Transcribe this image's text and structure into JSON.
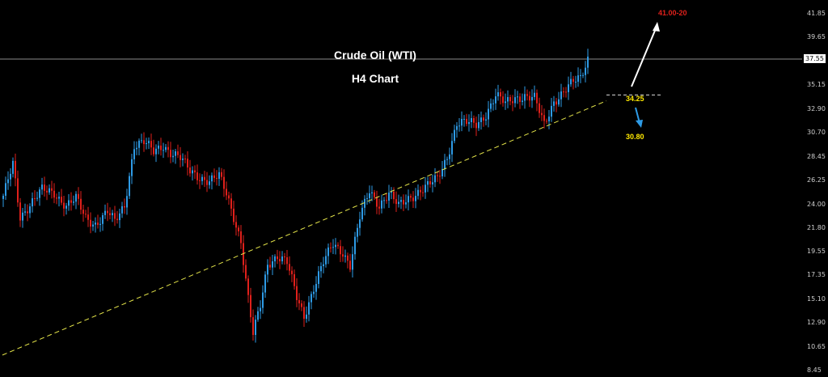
{
  "chart_data": {
    "type": "candlestick",
    "title": "Crude Oil (WTI)",
    "subtitle": "H4 Chart",
    "y_ticks": [
      "41.85",
      "39.65",
      "37.55",
      "35.15",
      "32.90",
      "30.70",
      "28.45",
      "26.25",
      "24.00",
      "21.80",
      "19.55",
      "17.35",
      "15.10",
      "12.90",
      "10.65",
      "8.45"
    ],
    "ylim": [
      8.45,
      41.85
    ],
    "current_price": "37.55",
    "colors": {
      "up": "#2e9be6",
      "down": "#e0201b",
      "trendline": "#e6e64a",
      "background": "#000000"
    },
    "price_path": [
      [
        0,
        24.6
      ],
      [
        4,
        27.8
      ],
      [
        7,
        22.9
      ],
      [
        11,
        24.0
      ],
      [
        16,
        25.3
      ],
      [
        21,
        25.1
      ],
      [
        26,
        23.9
      ],
      [
        30,
        24.5
      ],
      [
        34,
        22.7
      ],
      [
        38,
        22.2
      ],
      [
        43,
        23.3
      ],
      [
        46,
        22.3
      ],
      [
        50,
        23.9
      ],
      [
        54,
        29.6
      ],
      [
        58,
        29.8
      ],
      [
        62,
        28.9
      ],
      [
        66,
        29.6
      ],
      [
        69,
        28.9
      ],
      [
        73,
        28.3
      ],
      [
        77,
        27.1
      ],
      [
        81,
        26.6
      ],
      [
        85,
        26.2
      ],
      [
        89,
        26.6
      ],
      [
        92,
        25.0
      ],
      [
        95,
        22.9
      ],
      [
        98,
        20.6
      ],
      [
        101,
        15.1
      ],
      [
        103,
        11.8
      ],
      [
        106,
        14.5
      ],
      [
        109,
        18.5
      ],
      [
        113,
        19.2
      ],
      [
        117,
        18.5
      ],
      [
        121,
        15.3
      ],
      [
        124,
        13.6
      ],
      [
        128,
        16.2
      ],
      [
        132,
        18.5
      ],
      [
        136,
        20.3
      ],
      [
        140,
        19.6
      ],
      [
        143,
        18.3
      ],
      [
        147,
        22.7
      ],
      [
        151,
        25.3
      ],
      [
        155,
        24.0
      ],
      [
        159,
        25.0
      ],
      [
        163,
        23.8
      ],
      [
        167,
        24.6
      ],
      [
        171,
        25.2
      ],
      [
        175,
        25.7
      ],
      [
        179,
        26.4
      ],
      [
        183,
        28.5
      ],
      [
        187,
        31.6
      ],
      [
        191,
        31.6
      ],
      [
        195,
        31.5
      ],
      [
        199,
        32.5
      ],
      [
        203,
        34.2
      ],
      [
        207,
        33.4
      ],
      [
        211,
        34.0
      ],
      [
        215,
        34.2
      ],
      [
        219,
        33.9
      ],
      [
        223,
        31.4
      ],
      [
        227,
        33.7
      ],
      [
        231,
        34.6
      ],
      [
        235,
        35.4
      ],
      [
        238,
        35.8
      ],
      [
        241,
        37.7
      ]
    ],
    "trendline": {
      "from": [
        0,
        9.9
      ],
      "to": [
        249,
        33.7
      ]
    },
    "levels": [
      {
        "value": 34.25,
        "label": "34.25"
      }
    ],
    "annotations": [
      {
        "label": "41.00-20",
        "value": 41.0,
        "color": "#e0201b",
        "direction": "up"
      },
      {
        "label": "34.25",
        "value": 34.25,
        "color": "#ffe800"
      },
      {
        "label": "30.80",
        "value": 30.8,
        "color": "#ffe800",
        "direction": "down"
      }
    ]
  }
}
